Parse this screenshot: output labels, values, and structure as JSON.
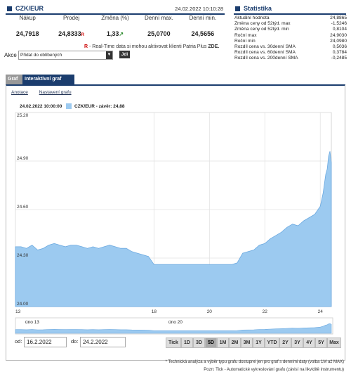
{
  "quote": {
    "title": "CZK/EUR",
    "datetime": "24.02.2022 10:10:28",
    "headers": [
      "Nákup",
      "Prodej",
      "Změna (%)",
      "Denní max.",
      "Denní min."
    ],
    "values": [
      "24,7918",
      "24,8333",
      "1,33",
      "25,0700",
      "24,5656"
    ],
    "prodej_flag": "R",
    "rt_flag": "R",
    "rt_note": " - Real-Time data si mohou aktivovat klienti Patria Plus ",
    "rt_link": "ZDE."
  },
  "akce": {
    "label": "Akce",
    "select_value": "Přidat do oblíbených",
    "go_label": "Jdi"
  },
  "stats": {
    "title": "Statistika",
    "rows": [
      {
        "label": "Aktuální hodnota",
        "value": "24,8865"
      },
      {
        "label": "Změna ceny od 52týd. max",
        "value": "-1,5246"
      },
      {
        "label": "Změna ceny od 52týd. min",
        "value": "0,8104"
      },
      {
        "label": "Roční max",
        "value": "24,9030"
      },
      {
        "label": "Roční min",
        "value": "24,0980"
      },
      {
        "label": "Rozdíl cena vs. 30denní SMA",
        "value": "0,5036"
      },
      {
        "label": "Rozdíl cena vs. 60denní SMA",
        "value": "0,3784"
      },
      {
        "label": "Rozdíl cena vs. 200denní SMA",
        "value": "-0,2485"
      }
    ]
  },
  "tabs": {
    "graf": "Graf",
    "interaktivni": "Interaktivní graf"
  },
  "links": {
    "anotace": "Anotace",
    "nastaveni": "Nastavení grafu"
  },
  "legend": {
    "date": "24.02.2022 10:00:00",
    "series": "CZK/EUR - závěr: 24,88"
  },
  "navigator": {
    "labels": [
      "úno 13",
      "úno 20"
    ]
  },
  "range": {
    "od_label": "od:",
    "od_value": "16.2.2022",
    "do_label": "do:",
    "do_value": "24.2.2022",
    "buttons": [
      "Tick",
      "1D",
      "3D",
      "5D",
      "1M",
      "2M",
      "3M",
      "1Y",
      "YTD",
      "2Y",
      "3Y",
      "4Y",
      "5Y",
      "Max"
    ],
    "active": "5D"
  },
  "footnotes": {
    "line1": "* Technická analýza a výběr typu grafu dostupné jen pro graf s denními daty (volba 1M až MAX)",
    "line2": "Pozn: Tick - Automatické vykreslování grafu (závisí na likviditě instrumentu)"
  },
  "chart_data": {
    "type": "area",
    "series": [
      {
        "name": "CZK/EUR"
      }
    ],
    "ylim": [
      24.0,
      25.2
    ],
    "yticks": [
      "25.20",
      "24.90",
      "24.60",
      "24.30",
      "24.00"
    ],
    "xticks": [
      "13",
      "18",
      "20",
      "22",
      "24"
    ],
    "xlim": [
      13,
      24.4
    ],
    "x": [
      13.0,
      13.2,
      13.4,
      13.6,
      13.8,
      14.0,
      14.2,
      14.4,
      14.6,
      14.8,
      15.0,
      15.2,
      15.4,
      15.6,
      15.8,
      16.0,
      16.2,
      16.4,
      16.6,
      16.8,
      17.0,
      17.2,
      17.4,
      17.6,
      17.8,
      18.0,
      18.2,
      18.4,
      18.6,
      18.8,
      19.0,
      19.2,
      19.4,
      19.6,
      19.8,
      20.0,
      20.2,
      20.4,
      20.6,
      20.8,
      21.0,
      21.2,
      21.4,
      21.6,
      21.8,
      22.0,
      22.2,
      22.4,
      22.6,
      22.8,
      23.0,
      23.2,
      23.4,
      23.6,
      23.8,
      24.0,
      24.1,
      24.2,
      24.25,
      24.3,
      24.35,
      24.4
    ],
    "y": [
      24.37,
      24.37,
      24.36,
      24.38,
      24.35,
      24.36,
      24.38,
      24.39,
      24.38,
      24.37,
      24.38,
      24.38,
      24.37,
      24.36,
      24.37,
      24.36,
      24.37,
      24.38,
      24.37,
      24.36,
      24.36,
      24.34,
      24.33,
      24.32,
      24.31,
      24.26,
      24.26,
      24.26,
      24.26,
      24.26,
      24.26,
      24.26,
      24.26,
      24.26,
      24.26,
      24.26,
      24.26,
      24.26,
      24.26,
      24.26,
      24.27,
      24.33,
      24.34,
      24.35,
      24.38,
      24.39,
      24.42,
      24.44,
      24.46,
      24.49,
      24.51,
      24.5,
      24.53,
      24.55,
      24.57,
      24.62,
      24.7,
      24.82,
      24.85,
      24.93,
      24.96,
      24.89
    ]
  }
}
